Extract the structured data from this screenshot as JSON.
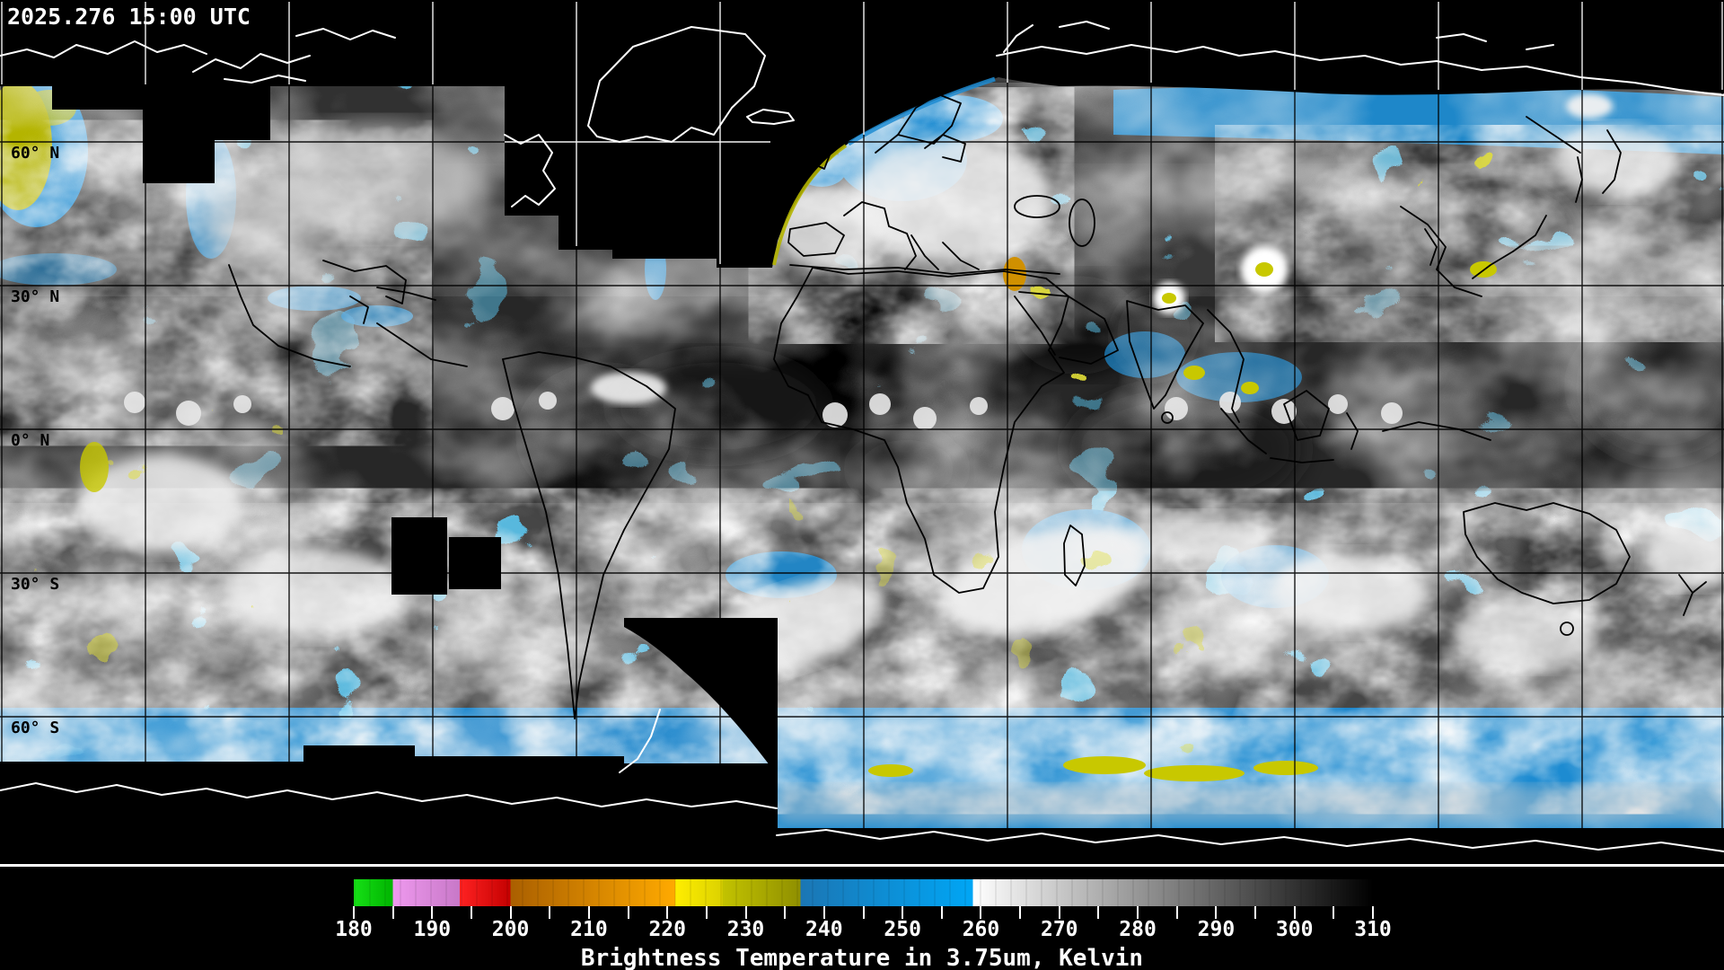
{
  "header": {
    "timestamp": "2025.276 15:00 UTC"
  },
  "map": {
    "lat_labels": [
      "60° N",
      "30° N",
      "0° N",
      "30° S",
      "60° S"
    ],
    "graticule_spacing_deg": 30,
    "colors": {
      "no_data_background": "#000000",
      "cloud_blue": "#1e8cd2",
      "cold_cloud_yellow": "#b8b800",
      "coastline_over_data": "#000000",
      "coastline_over_void": "#ffffff"
    }
  },
  "colorbar": {
    "caption": "Brightness Temperature in 3.75um, Kelvin",
    "units": "Kelvin",
    "min": 180,
    "max": 310,
    "major_tick_labels": [
      "180",
      "190",
      "200",
      "210",
      "220",
      "230",
      "240",
      "250",
      "260",
      "270",
      "280",
      "290",
      "300",
      "310"
    ],
    "major_tick_step": 10,
    "minor_tick_step": 5,
    "tick_color": "#ffffff",
    "label_color": "#ffffff",
    "segments": [
      {
        "from": 180,
        "to": 185,
        "colors": [
          "#16e016",
          "#00b400"
        ]
      },
      {
        "from": 185,
        "to": 193.5,
        "colors": [
          "#ee99ee",
          "#c878c8"
        ]
      },
      {
        "from": 193.5,
        "to": 200,
        "colors": [
          "#ff2222",
          "#c40000"
        ]
      },
      {
        "from": 200,
        "to": 221,
        "colors": [
          "#aa5f00",
          "#ffaa00"
        ]
      },
      {
        "from": 221,
        "to": 227,
        "colors": [
          "#ffee00",
          "#dcd200"
        ]
      },
      {
        "from": 227,
        "to": 237,
        "colors": [
          "#c3c300",
          "#8f8f00"
        ]
      },
      {
        "from": 237,
        "to": 259,
        "colors": [
          "#1b76b4",
          "#00a6f5"
        ]
      },
      {
        "from": 259,
        "to": 310,
        "colors": [
          "#ffffff",
          "#000000"
        ]
      }
    ]
  }
}
